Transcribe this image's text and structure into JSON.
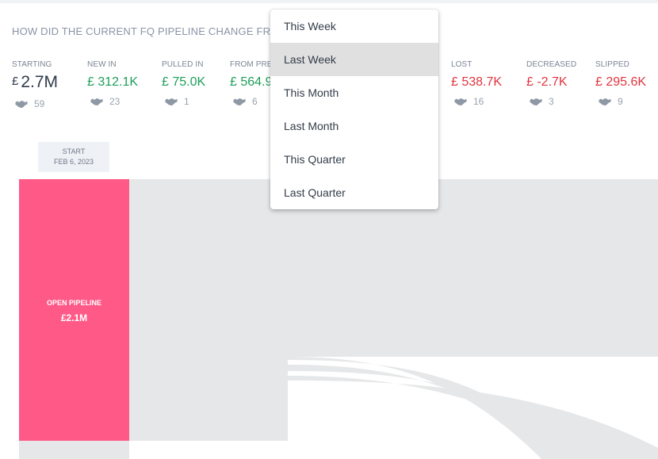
{
  "report": {
    "title": "HOW DID THE CURRENT FQ PIPELINE CHANGE FROM"
  },
  "metrics": [
    {
      "label": "STARTING",
      "currency": "£",
      "value": "2.7M",
      "deals": "59"
    },
    {
      "label": "NEW IN",
      "value": "£ 312.1K",
      "deals": "23"
    },
    {
      "label": "PULLED IN",
      "value": "£ 75.0K",
      "deals": "1"
    },
    {
      "label": "FROM PREV",
      "value": "£ 564.9",
      "deals": "6"
    },
    {
      "label": "LOST",
      "value": "£ 538.7K",
      "deals": "16"
    },
    {
      "label": "DECREASED",
      "value": "£ -2.7K",
      "deals": "3"
    },
    {
      "label": "SLIPPED",
      "value": "£ 295.6K",
      "deals": "9"
    }
  ],
  "start": {
    "label": "START",
    "date": "FEB 6, 2023"
  },
  "chart": {
    "open_pipeline_label": "OPEN PIPELINE",
    "open_pipeline_value": "£2.1M",
    "bar_color": "#ff5a87"
  },
  "dropdown": {
    "options": [
      "This Week",
      "Last Week",
      "This Month",
      "Last Month",
      "This Quarter",
      "Last Quarter"
    ],
    "selected": "Last Week"
  },
  "colors": {
    "positive": "#1e9e5a",
    "negative": "#e0353f"
  },
  "icons": {
    "deals": "handshake-icon"
  }
}
